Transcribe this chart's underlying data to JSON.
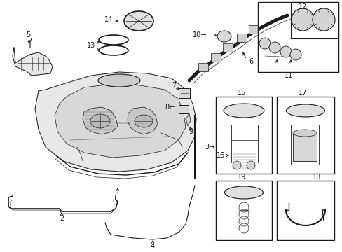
{
  "bg_color": "#ffffff",
  "line_color": "#1a1a1a",
  "fig_width": 4.89,
  "fig_height": 3.6,
  "dpi": 100,
  "tank_bg_color": "#e8e8e8",
  "part_bg_color": "#f0f0f0"
}
